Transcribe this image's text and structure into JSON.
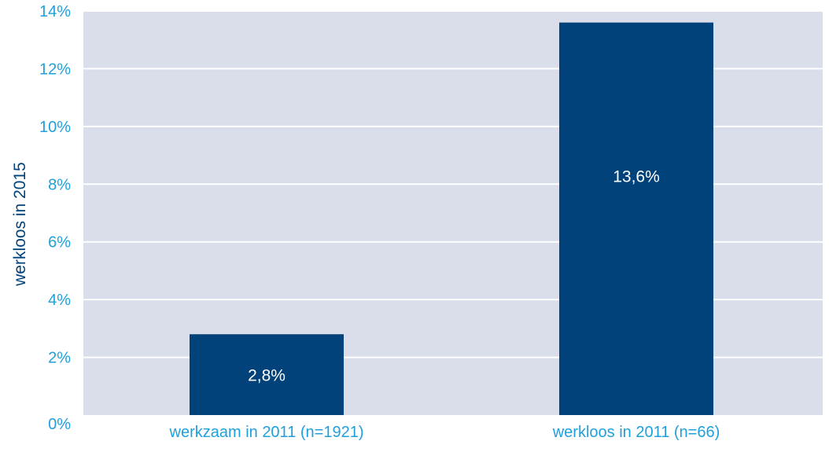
{
  "chart_data": {
    "type": "bar",
    "categories": [
      "werkzaam in 2011 (n=1921)",
      "werkloos in 2011 (n=66)"
    ],
    "values": [
      2.8,
      13.6
    ],
    "data_labels": [
      "2,8%",
      "13,6%"
    ],
    "ylabel": "werkloos in 2015",
    "ylim": [
      0,
      14
    ],
    "yticks": [
      0,
      2,
      4,
      6,
      8,
      10,
      12,
      14
    ],
    "ytick_labels": [
      "0%",
      "2%",
      "4%",
      "6%",
      "8%",
      "10%",
      "12%",
      "14%"
    ],
    "grid": true,
    "colors": {
      "bar": "#01427A",
      "plot_background": "#D9DEEA",
      "gridline": "#FFFFFF",
      "tick_text": "#1FA0DC",
      "axis_label_text": "#01427A",
      "data_label_text": "#FFFFFF"
    }
  }
}
